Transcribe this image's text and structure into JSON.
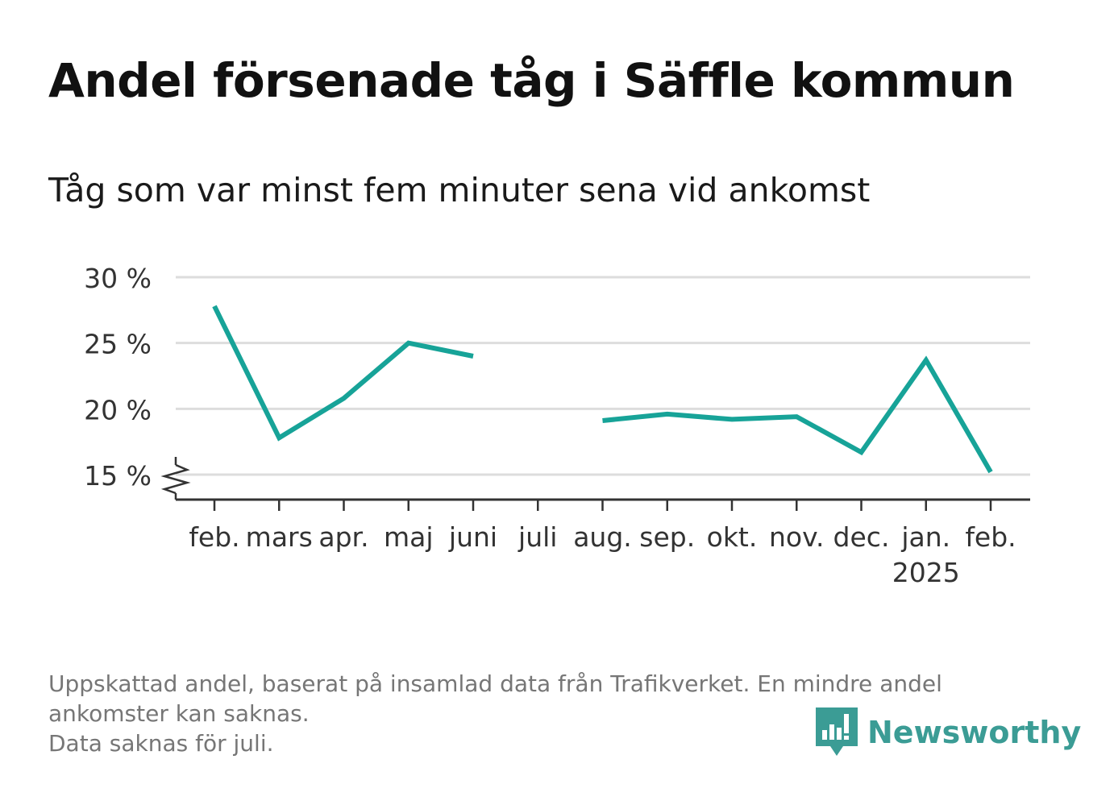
{
  "title": "Andel försenade tåg i Säffle kommun",
  "subtitle": "Tåg som var minst fem minuter sena vid ankomst",
  "footnote": {
    "line1": "Uppskattad andel, baserat på insamlad data från Trafikverket. En mindre andel",
    "line2": "ankomster kan saknas.",
    "line3": "Data saknas för juli."
  },
  "brand": {
    "name": "Newsworthy",
    "color": "#3b9c95"
  },
  "colors": {
    "line": "#17a398",
    "grid": "#dddddd",
    "axis": "#333333",
    "text": "#333333"
  },
  "chart_data": {
    "type": "line",
    "categories": [
      "feb.",
      "mars",
      "apr.",
      "maj",
      "juni",
      "juli",
      "aug.",
      "sep.",
      "okt.",
      "nov.",
      "dec.",
      "jan.",
      "feb."
    ],
    "year_label": {
      "category_index": 11,
      "text": "2025"
    },
    "series": [
      {
        "values": [
          27.8,
          17.8,
          20.8,
          25.0,
          24.0,
          null,
          19.1,
          19.6,
          19.2,
          19.4,
          16.7,
          23.7,
          15.2
        ]
      }
    ],
    "yticks": [
      15,
      20,
      25,
      30
    ],
    "ytick_labels": [
      "15 %",
      "20 %",
      "25 %",
      "30 %"
    ],
    "ylim": [
      15,
      30
    ],
    "axis_break": true,
    "grid": true,
    "legend": "none"
  }
}
